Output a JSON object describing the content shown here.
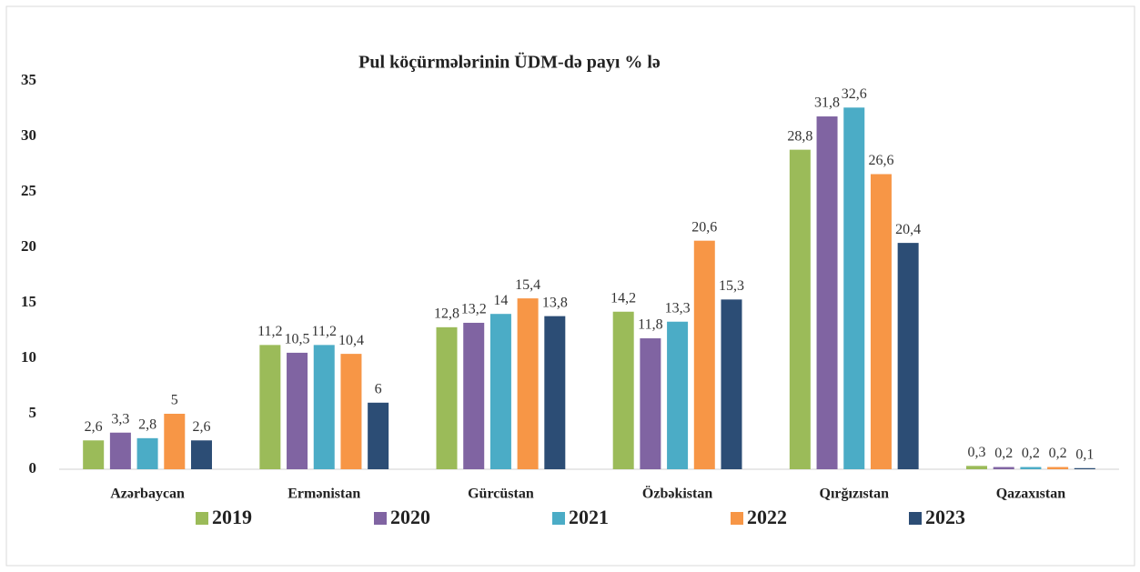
{
  "chart_data": {
    "type": "bar",
    "title": "Pul köçürmələrinin ÜDM-də payı % lə",
    "categories": [
      "Azərbaycan",
      "Ermənistan",
      "Gürcüstan",
      "Özbəkistan",
      "Qırğızıstan",
      "Qazaxıstan"
    ],
    "series": [
      {
        "name": "2019",
        "color": "#9bbb59",
        "values": [
          2.6,
          11.2,
          12.8,
          14.2,
          28.8,
          0.3
        ],
        "value_labels": [
          "2,6",
          "11,2",
          "12,8",
          "14,2",
          "28,8",
          "0,3"
        ]
      },
      {
        "name": "2020",
        "color": "#8064a2",
        "values": [
          3.3,
          10.5,
          13.2,
          11.8,
          31.8,
          0.2
        ],
        "value_labels": [
          "3,3",
          "10,5",
          "13,2",
          "11,8",
          "31,8",
          "0,2"
        ]
      },
      {
        "name": "2021",
        "color": "#4bacc6",
        "values": [
          2.8,
          11.2,
          14,
          13.3,
          32.6,
          0.2
        ],
        "value_labels": [
          "2,8",
          "11,2",
          "14",
          "13,3",
          "32,6",
          "0,2"
        ]
      },
      {
        "name": "2022",
        "color": "#f79646",
        "values": [
          5,
          10.4,
          15.4,
          20.6,
          26.6,
          0.2
        ],
        "value_labels": [
          "5",
          "10,4",
          "15,4",
          "20,6",
          "26,6",
          "0,2"
        ]
      },
      {
        "name": "2023",
        "color": "#2c4d75",
        "values": [
          2.6,
          6,
          13.8,
          15.3,
          20.4,
          0.1
        ],
        "value_labels": [
          "2,6",
          "6",
          "13,8",
          "15,3",
          "20,4",
          "0,1"
        ]
      }
    ],
    "ylim": [
      0,
      35
    ],
    "yticks": [
      0,
      5,
      10,
      15,
      20,
      25,
      30,
      35
    ],
    "grid": false,
    "legend": "bottom"
  }
}
